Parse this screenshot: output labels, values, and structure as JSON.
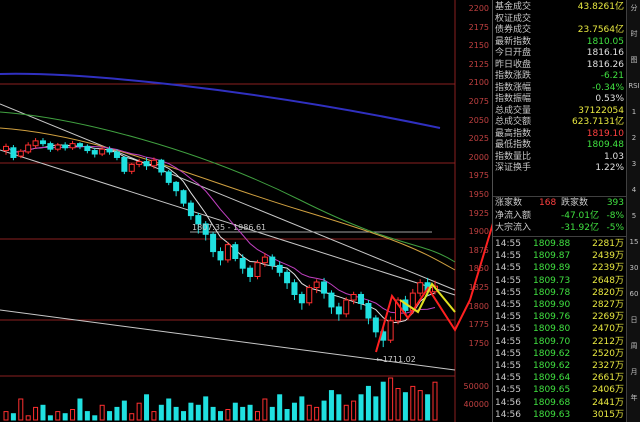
{
  "axis": {
    "labels": [
      "2200",
      "2175",
      "2150",
      "2125",
      "2100",
      "2075",
      "2050",
      "2025",
      "2000",
      "1975",
      "1950",
      "1925",
      "1900",
      "1875",
      "1850",
      "1825",
      "1800",
      "1775",
      "1750"
    ],
    "volume_labels": [
      "50000",
      "40000"
    ]
  },
  "annotations": {
    "range": "1807.35 - 1986.61",
    "low": "1711.02"
  },
  "panel": {
    "stats": [
      {
        "label": "基金成交",
        "value": "43.8261亿",
        "cls": "yellow"
      },
      {
        "label": "权证成交",
        "value": "",
        "cls": "yellow"
      },
      {
        "label": "债券成交",
        "value": "23.7564亿",
        "cls": "yellow"
      },
      {
        "label": "最新指数",
        "value": "1810.05",
        "cls": "green"
      },
      {
        "label": "今日开盘",
        "value": "1816.16",
        "cls": "white"
      },
      {
        "label": "昨日收盘",
        "value": "1816.26",
        "cls": "white"
      },
      {
        "label": "指数涨跌",
        "value": "-6.21",
        "cls": "green"
      },
      {
        "label": "指数涨幅",
        "value": "-0.34%",
        "cls": "green"
      },
      {
        "label": "指数振幅",
        "value": "0.53%",
        "cls": "white"
      },
      {
        "label": "总成交量",
        "value": "37122054",
        "cls": "yellow"
      },
      {
        "label": "总成交额",
        "value": "623.7131亿",
        "cls": "yellow"
      },
      {
        "label": "最高指数",
        "value": "1819.10",
        "cls": "red"
      },
      {
        "label": "最低指数",
        "value": "1809.48",
        "cls": "green"
      },
      {
        "label": "指数量比",
        "value": "1.03",
        "cls": "white"
      },
      {
        "label": "深证换手",
        "value": "1.22%",
        "cls": "white"
      }
    ],
    "breadth": {
      "up_label": "涨家数",
      "up_value": "168",
      "down_label": "跌家数",
      "down_value": "393"
    },
    "flows": [
      {
        "label": "净流入额",
        "value": "-47.01亿",
        "pct": "-8%"
      },
      {
        "label": "大宗流入",
        "value": "-31.92亿",
        "pct": "-5%"
      }
    ],
    "ticks": [
      {
        "time": "14:55",
        "price": "1809.88",
        "vol": "2281万"
      },
      {
        "time": "14:55",
        "price": "1809.87",
        "vol": "2439万"
      },
      {
        "time": "14:55",
        "price": "1809.89",
        "vol": "2239万"
      },
      {
        "time": "14:55",
        "price": "1809.73",
        "vol": "2648万"
      },
      {
        "time": "14:55",
        "price": "1809.78",
        "vol": "2820万"
      },
      {
        "time": "14:55",
        "price": "1809.90",
        "vol": "2827万"
      },
      {
        "time": "14:55",
        "price": "1809.76",
        "vol": "2269万"
      },
      {
        "time": "14:55",
        "price": "1809.80",
        "vol": "2470万"
      },
      {
        "time": "14:55",
        "price": "1809.70",
        "vol": "2212万"
      },
      {
        "time": "14:55",
        "price": "1809.62",
        "vol": "2520万"
      },
      {
        "time": "14:55",
        "price": "1809.62",
        "vol": "2327万"
      },
      {
        "time": "14:55",
        "price": "1809.64",
        "vol": "2661万"
      },
      {
        "time": "14:55",
        "price": "1809.65",
        "vol": "2406万"
      },
      {
        "time": "14:56",
        "price": "1809.68",
        "vol": "2441万"
      },
      {
        "time": "14:56",
        "price": "1809.63",
        "vol": "3015万"
      }
    ]
  },
  "sidebar": [
    "分",
    "时",
    "图",
    "RSI",
    "1",
    "2",
    "3",
    "4",
    "5",
    "15",
    "30",
    "60",
    "日",
    "周",
    "月",
    "年"
  ],
  "chart_data": {
    "type": "candlestick",
    "ylim": [
      1725,
      2212
    ],
    "candles": [
      [
        2006,
        2012,
        2000,
        2016
      ],
      [
        2010,
        1996,
        1992,
        2014
      ],
      [
        1998,
        2005,
        1995,
        2008
      ],
      [
        2004,
        2014,
        2001,
        2018
      ],
      [
        2013,
        2020,
        2009,
        2024
      ],
      [
        2020,
        2016,
        2012,
        2024
      ],
      [
        2016,
        2008,
        2004,
        2019
      ],
      [
        2008,
        2014,
        2005,
        2017
      ],
      [
        2014,
        2010,
        2006,
        2018
      ],
      [
        2010,
        2016,
        2007,
        2020
      ],
      [
        2016,
        2012,
        2008,
        2018
      ],
      [
        2012,
        2006,
        2002,
        2015
      ],
      [
        2006,
        2001,
        1996,
        2010
      ],
      [
        2001,
        2008,
        1998,
        2012
      ],
      [
        2008,
        2004,
        2000,
        2012
      ],
      [
        2004,
        1996,
        1992,
        2008
      ],
      [
        1996,
        1976,
        1972,
        1998
      ],
      [
        1976,
        1986,
        1972,
        1988
      ],
      [
        1986,
        1990,
        1982,
        1994
      ],
      [
        1990,
        1984,
        1978,
        1996
      ],
      [
        1984,
        1992,
        1980,
        1996
      ],
      [
        1992,
        1975,
        1970,
        1994
      ],
      [
        1975,
        1960,
        1956,
        1978
      ],
      [
        1960,
        1948,
        1940,
        1962
      ],
      [
        1948,
        1930,
        1925,
        1950
      ],
      [
        1930,
        1912,
        1906,
        1934
      ],
      [
        1912,
        1900,
        1886,
        1916
      ],
      [
        1900,
        1885,
        1876,
        1904
      ],
      [
        1885,
        1860,
        1852,
        1888
      ],
      [
        1860,
        1848,
        1840,
        1866
      ],
      [
        1848,
        1870,
        1844,
        1874
      ],
      [
        1870,
        1850,
        1846,
        1874
      ],
      [
        1850,
        1836,
        1828,
        1856
      ],
      [
        1836,
        1824,
        1816,
        1840
      ],
      [
        1824,
        1844,
        1820,
        1848
      ],
      [
        1844,
        1852,
        1838,
        1858
      ],
      [
        1852,
        1840,
        1834,
        1856
      ],
      [
        1840,
        1830,
        1824,
        1846
      ],
      [
        1830,
        1815,
        1806,
        1834
      ],
      [
        1815,
        1798,
        1790,
        1820
      ],
      [
        1798,
        1786,
        1776,
        1802
      ],
      [
        1786,
        1808,
        1782,
        1812
      ],
      [
        1808,
        1816,
        1800,
        1820
      ],
      [
        1816,
        1800,
        1792,
        1822
      ],
      [
        1800,
        1780,
        1770,
        1804
      ],
      [
        1780,
        1770,
        1760,
        1786
      ],
      [
        1770,
        1790,
        1765,
        1794
      ],
      [
        1790,
        1798,
        1784,
        1802
      ],
      [
        1798,
        1785,
        1776,
        1802
      ],
      [
        1785,
        1764,
        1755,
        1790
      ],
      [
        1764,
        1744,
        1736,
        1768
      ],
      [
        1744,
        1732,
        1722,
        1750
      ],
      [
        1732,
        1760,
        1728,
        1766
      ],
      [
        1760,
        1790,
        1755,
        1794
      ],
      [
        1790,
        1775,
        1768,
        1796
      ],
      [
        1775,
        1800,
        1770,
        1806
      ],
      [
        1800,
        1815,
        1795,
        1820
      ],
      [
        1815,
        1802,
        1796,
        1822
      ],
      [
        1802,
        1810,
        1798,
        1818
      ]
    ],
    "volumes": [
      0.2,
      0.15,
      0.5,
      0.1,
      0.3,
      0.35,
      0.1,
      0.2,
      0.15,
      0.25,
      0.5,
      0.2,
      0.1,
      0.35,
      0.2,
      0.3,
      0.45,
      0.15,
      0.4,
      0.6,
      0.2,
      0.35,
      0.5,
      0.3,
      0.2,
      0.4,
      0.35,
      0.55,
      0.3,
      0.2,
      0.25,
      0.4,
      0.3,
      0.35,
      0.2,
      0.5,
      0.3,
      0.6,
      0.25,
      0.4,
      0.55,
      0.35,
      0.3,
      0.45,
      0.7,
      0.6,
      0.35,
      0.45,
      0.6,
      0.8,
      0.55,
      0.9,
      1.0,
      0.75,
      0.65,
      0.8,
      0.7,
      0.6,
      0.9
    ]
  }
}
